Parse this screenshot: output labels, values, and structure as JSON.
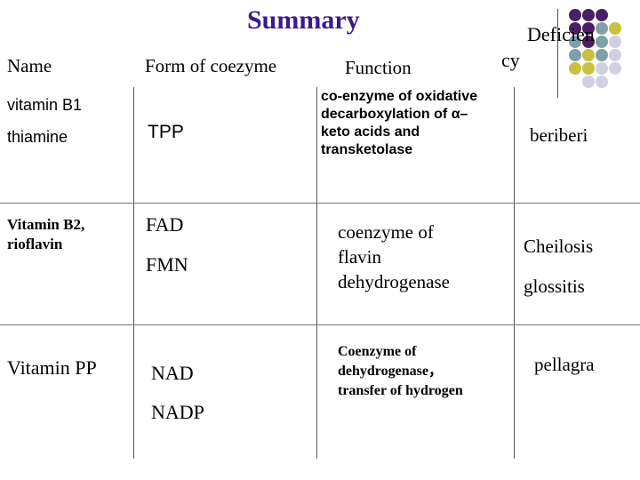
{
  "title": "Summary",
  "headers": {
    "name": "Name",
    "form": "Form of coezyme",
    "function": "Function",
    "deficiency_line1": "Deficien",
    "deficiency_line2": "cy"
  },
  "rows": [
    {
      "name_line1": "vitamin B1",
      "name_line2": "thiamine",
      "form": "TPP",
      "function": "co-enzyme of oxidative\ndecarboxylation of α–\nketo  acids and\ntransketolase",
      "deficiency": "beriberi"
    },
    {
      "name": "Vitamin B2,\nrioflavin",
      "form_1": "FAD",
      "form_2": "FMN",
      "function": "coenzyme of\nflavin\ndehydrogenase",
      "deficiency_1": "Cheilosis",
      "deficiency_2": "glossitis"
    },
    {
      "name": "Vitamin PP",
      "form_1": "NAD",
      "form_2": "NADP",
      "function": "Coenzyme of\ndehydrogenase，\ntransfer of hydrogen",
      "deficiency": "pellagra"
    }
  ],
  "decor_colors": {
    "purple": "#4a2060",
    "teal": "#7fa0a8",
    "olive": "#c8c040",
    "lavender": "#d0d0e0"
  }
}
